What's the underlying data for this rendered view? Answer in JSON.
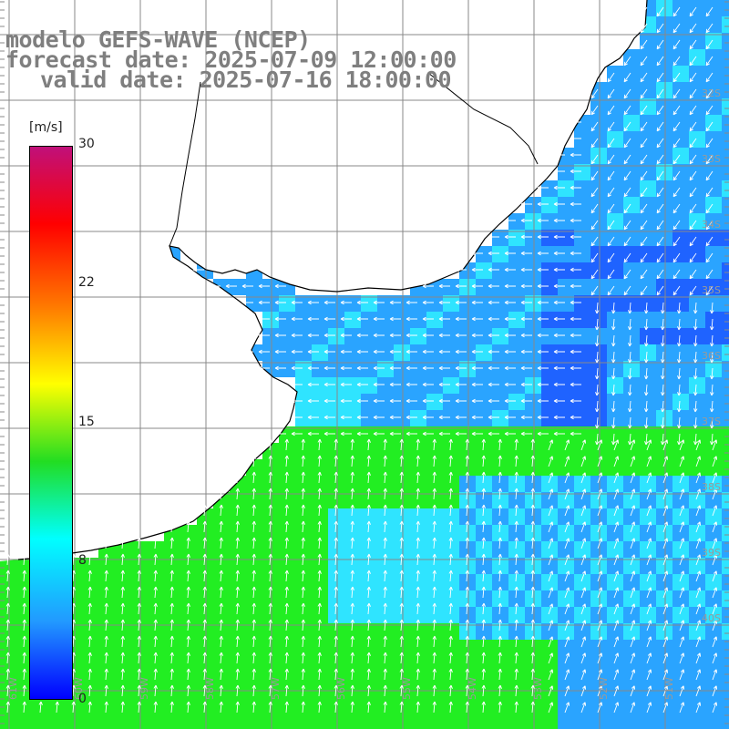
{
  "header": {
    "line1": "modelo GEFS-WAVE (NCEP)",
    "line2": "forecast date: 2025-07-09 12:00:00",
    "line3": "valid date: 2025-07-16 18:00:00"
  },
  "colorbar": {
    "unit": "[m/s]",
    "ticks": [
      "30",
      "22",
      "15",
      "8",
      "0"
    ],
    "tick_values": [
      30,
      22,
      15,
      8,
      0
    ],
    "colors": [
      "#c0107a",
      "#ff0000",
      "#ff7a00",
      "#ffff00",
      "#22dd22",
      "#00ffff",
      "#2299ff",
      "#0000ff"
    ]
  },
  "map": {
    "grid": true,
    "colors": {
      "land": "#ffffff",
      "coast": "#000000",
      "grid": "#888888",
      "arrows": "#ffffff",
      "ocean_low": "#1f63ff",
      "ocean_mid": "#2aa4ff",
      "ocean_cyan": "#2fe4ff",
      "ocean_green": "#22ee22"
    },
    "lat_labels": [
      "32S",
      "33S",
      "34S",
      "35S",
      "36S",
      "37S",
      "38S",
      "39S",
      "40S"
    ],
    "lon_labels": [
      "61W",
      "60W",
      "59W",
      "58W",
      "57W",
      "56W",
      "55W",
      "54W",
      "53W",
      "52W",
      "51W"
    ]
  }
}
